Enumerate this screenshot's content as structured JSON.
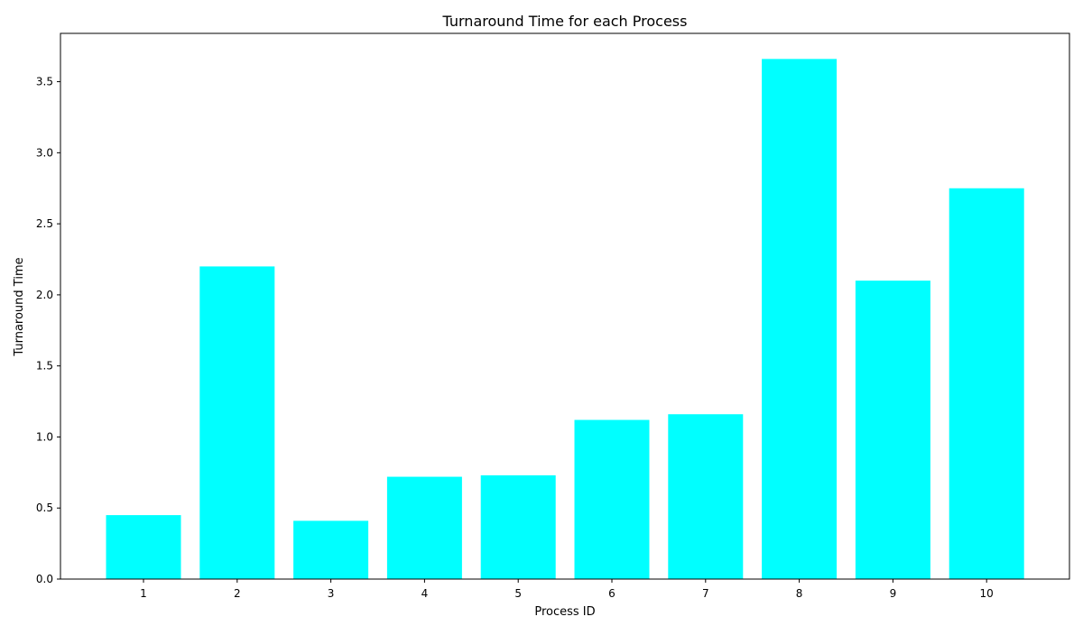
{
  "chart_data": {
    "type": "bar",
    "title": "Turnaround Time for each Process",
    "xlabel": "Process ID",
    "ylabel": "Turnaround Time",
    "categories": [
      "1",
      "2",
      "3",
      "4",
      "5",
      "6",
      "7",
      "8",
      "9",
      "10"
    ],
    "values": [
      0.45,
      2.2,
      0.41,
      0.72,
      0.73,
      1.12,
      1.16,
      3.66,
      2.1,
      2.75
    ],
    "yticks": [
      "0.0",
      "0.5",
      "1.0",
      "1.5",
      "2.0",
      "2.5",
      "3.0",
      "3.5"
    ],
    "ylim": [
      0,
      3.84
    ],
    "bar_color": "#00ffff",
    "grid": false,
    "legend": "none"
  }
}
